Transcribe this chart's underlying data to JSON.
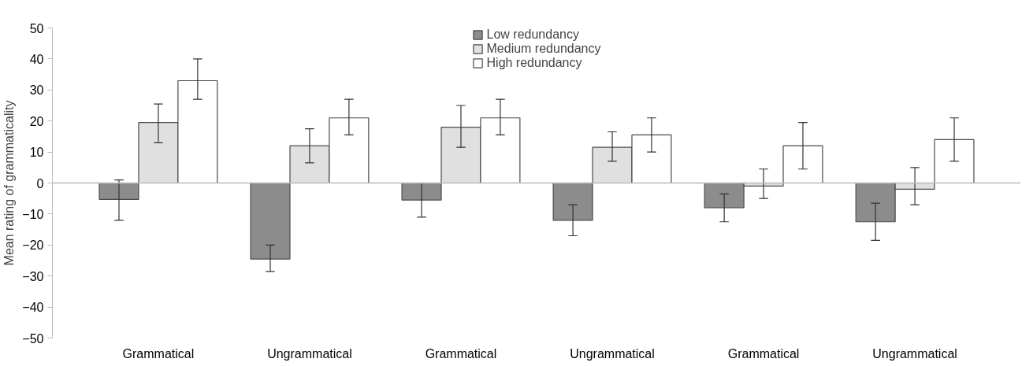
{
  "chart_data": {
    "type": "bar",
    "ylabel": "Mean rating of grammaticality",
    "categories": [
      "Grammatical",
      "Ungrammatical",
      "Grammatical",
      "Ungrammatical",
      "Grammatical",
      "Ungrammatical"
    ],
    "ylim": [
      -50,
      50
    ],
    "yticks": [
      -50,
      -40,
      -30,
      -20,
      -10,
      0,
      10,
      20,
      30,
      40,
      50
    ],
    "legend": "top",
    "ref_lines": [
      {
        "axis": "y",
        "value": 0,
        "color": "#bbbbbb"
      }
    ],
    "series": [
      {
        "name": "Low redundancy",
        "color": "#8c8c8c",
        "values": [
          -5.3,
          -24.5,
          -5.5,
          -12,
          -8,
          -12.5
        ],
        "errors": [
          [
            -12,
            1
          ],
          [
            -28.5,
            -20
          ],
          [
            -11,
            0
          ],
          [
            -17,
            -7
          ],
          [
            -12.5,
            -3.5
          ],
          [
            -18.5,
            -6.5
          ]
        ]
      },
      {
        "name": "Medium redundancy",
        "color": "#e0e0e0",
        "values": [
          19.5,
          12,
          18,
          11.5,
          -1,
          -2
        ],
        "errors": [
          [
            13,
            25.5
          ],
          [
            6.5,
            17.5
          ],
          [
            11.5,
            25
          ],
          [
            7,
            16.5
          ],
          [
            -5,
            4.5
          ],
          [
            -7,
            5
          ]
        ]
      },
      {
        "name": "High redundancy",
        "color": "#ffffff",
        "values": [
          33,
          21,
          21,
          15.5,
          12,
          14
        ],
        "errors": [
          [
            27,
            40
          ],
          [
            15.5,
            27
          ],
          [
            15.5,
            27
          ],
          [
            10,
            21
          ],
          [
            4.5,
            19.5
          ],
          [
            7,
            21
          ]
        ]
      }
    ]
  }
}
